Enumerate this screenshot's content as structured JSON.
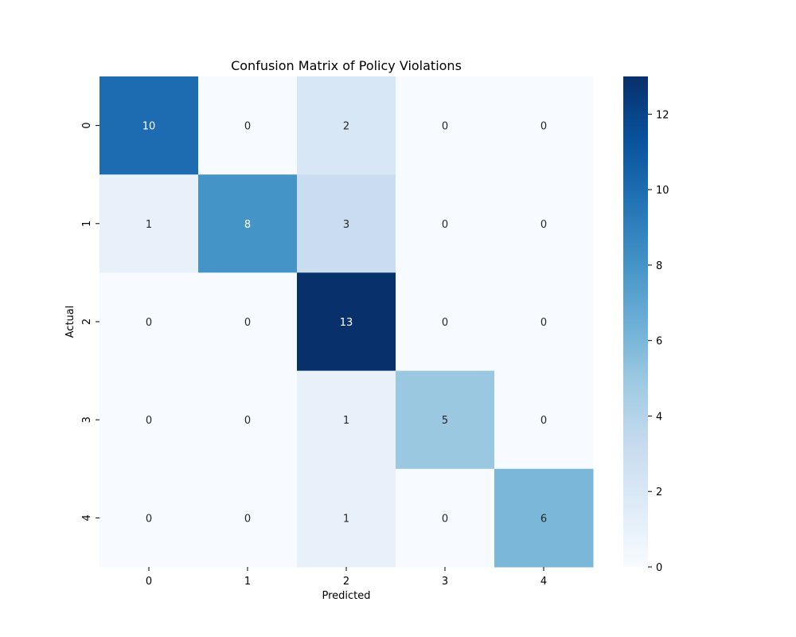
{
  "chart_data": {
    "type": "heatmap",
    "title": "Confusion Matrix of Policy Violations",
    "xlabel": "Predicted",
    "ylabel": "Actual",
    "x_categories": [
      "0",
      "1",
      "2",
      "3",
      "4"
    ],
    "y_categories": [
      "0",
      "1",
      "2",
      "3",
      "4"
    ],
    "values": [
      [
        10,
        0,
        2,
        0,
        0
      ],
      [
        1,
        8,
        3,
        0,
        0
      ],
      [
        0,
        0,
        13,
        0,
        0
      ],
      [
        0,
        0,
        1,
        5,
        0
      ],
      [
        0,
        0,
        1,
        0,
        6
      ]
    ],
    "colormap": "Blues",
    "colorbar": {
      "min": 0,
      "max": 13,
      "ticks": [
        0,
        2,
        4,
        6,
        8,
        10,
        12
      ],
      "tick_labels": [
        "0",
        "2",
        "4",
        "6",
        "8",
        "10",
        "12"
      ]
    },
    "annotations": true
  }
}
